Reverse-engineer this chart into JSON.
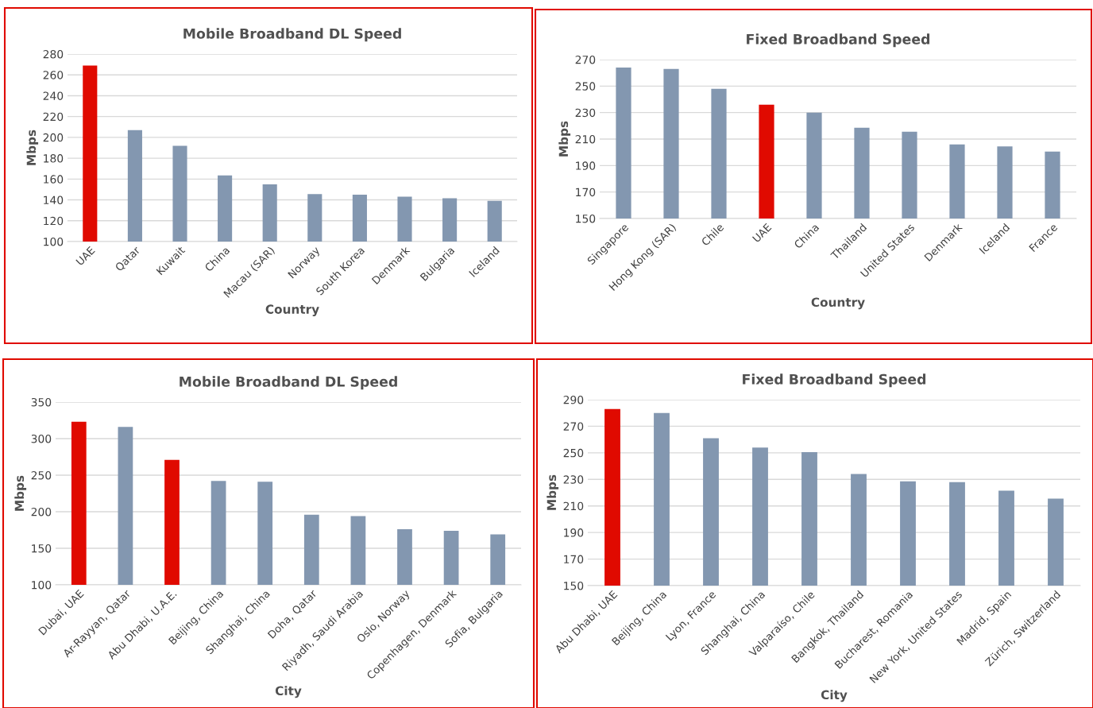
{
  "chart_data": [
    {
      "type": "bar",
      "title": "Mobile Broadband DL Speed",
      "xlabel": "Country",
      "ylabel": "Mbps",
      "categories": [
        "UAE",
        "Qatar",
        "Kuwait",
        "China",
        "Macau (SAR)",
        "Norway",
        "South Korea",
        "Denmark",
        "Bulgaria",
        "Iceland"
      ],
      "values": [
        269,
        207,
        192,
        163.5,
        155,
        145.5,
        145,
        143,
        141.5,
        139
      ],
      "colors": [
        "#e00a00",
        "#8397b0",
        "#8397b0",
        "#8397b0",
        "#8397b0",
        "#8397b0",
        "#8397b0",
        "#8397b0",
        "#8397b0",
        "#8397b0"
      ],
      "ylim": [
        100,
        280
      ],
      "yticks": [
        100,
        120,
        140,
        160,
        180,
        200,
        220,
        240,
        260,
        280
      ],
      "grid": "y"
    },
    {
      "type": "bar",
      "title": "Fixed Broadband Speed",
      "xlabel": "Country",
      "ylabel": "Mbps",
      "categories": [
        "Singapore",
        "Hong Kong (SAR)",
        "Chile",
        "UAE",
        "China",
        "Thailand",
        "United States",
        "Denmark",
        "Iceland",
        "France"
      ],
      "values": [
        264,
        263,
        248,
        236,
        230,
        218.5,
        215.5,
        206,
        204.5,
        200.5
      ],
      "colors": [
        "#8397b0",
        "#8397b0",
        "#8397b0",
        "#e00a00",
        "#8397b0",
        "#8397b0",
        "#8397b0",
        "#8397b0",
        "#8397b0",
        "#8397b0"
      ],
      "ylim": [
        150,
        270
      ],
      "yticks": [
        150,
        170,
        190,
        210,
        230,
        250,
        270
      ],
      "grid": "y"
    },
    {
      "type": "bar",
      "title": "Mobile Broadband DL Speed",
      "xlabel": "City",
      "ylabel": "Mbps",
      "categories": [
        "Dubai, UAE",
        "Ar-Rayyan, Qatar",
        "Abu Dhabi, U.A.E.",
        "Beijing, China",
        "Shanghai, China",
        "Doha, Qatar",
        "Riyadh, Saudi Arabia",
        "Oslo, Norway",
        "Copenhagen, Denmark",
        "Sofia, Bulgaria"
      ],
      "values": [
        323,
        316,
        271,
        242,
        241,
        196,
        194,
        176,
        174,
        169
      ],
      "colors": [
        "#e00a00",
        "#8397b0",
        "#e00a00",
        "#8397b0",
        "#8397b0",
        "#8397b0",
        "#8397b0",
        "#8397b0",
        "#8397b0",
        "#8397b0"
      ],
      "ylim": [
        100,
        350
      ],
      "yticks": [
        100,
        150,
        200,
        250,
        300,
        350
      ],
      "grid": "y"
    },
    {
      "type": "bar",
      "title": "Fixed Broadband Speed",
      "xlabel": "City",
      "ylabel": "Mbps",
      "categories": [
        "Abu Dhabi, UAE",
        "Beijing, China",
        "Lyon, France",
        "Shanghai, China",
        "Valparaíso, Chile",
        "Bangkok, Thailand",
        "Bucharest, Romania",
        "New York, United States",
        "Madrid, Spain",
        "Zürich, Switzerland"
      ],
      "values": [
        283,
        280,
        261,
        254,
        250.5,
        234,
        228.5,
        228,
        221.5,
        215.5
      ],
      "colors": [
        "#e00a00",
        "#8397b0",
        "#8397b0",
        "#8397b0",
        "#8397b0",
        "#8397b0",
        "#8397b0",
        "#8397b0",
        "#8397b0",
        "#8397b0"
      ],
      "ylim": [
        150,
        290
      ],
      "yticks": [
        150,
        170,
        190,
        210,
        230,
        250,
        270,
        290
      ],
      "grid": "y"
    }
  ]
}
